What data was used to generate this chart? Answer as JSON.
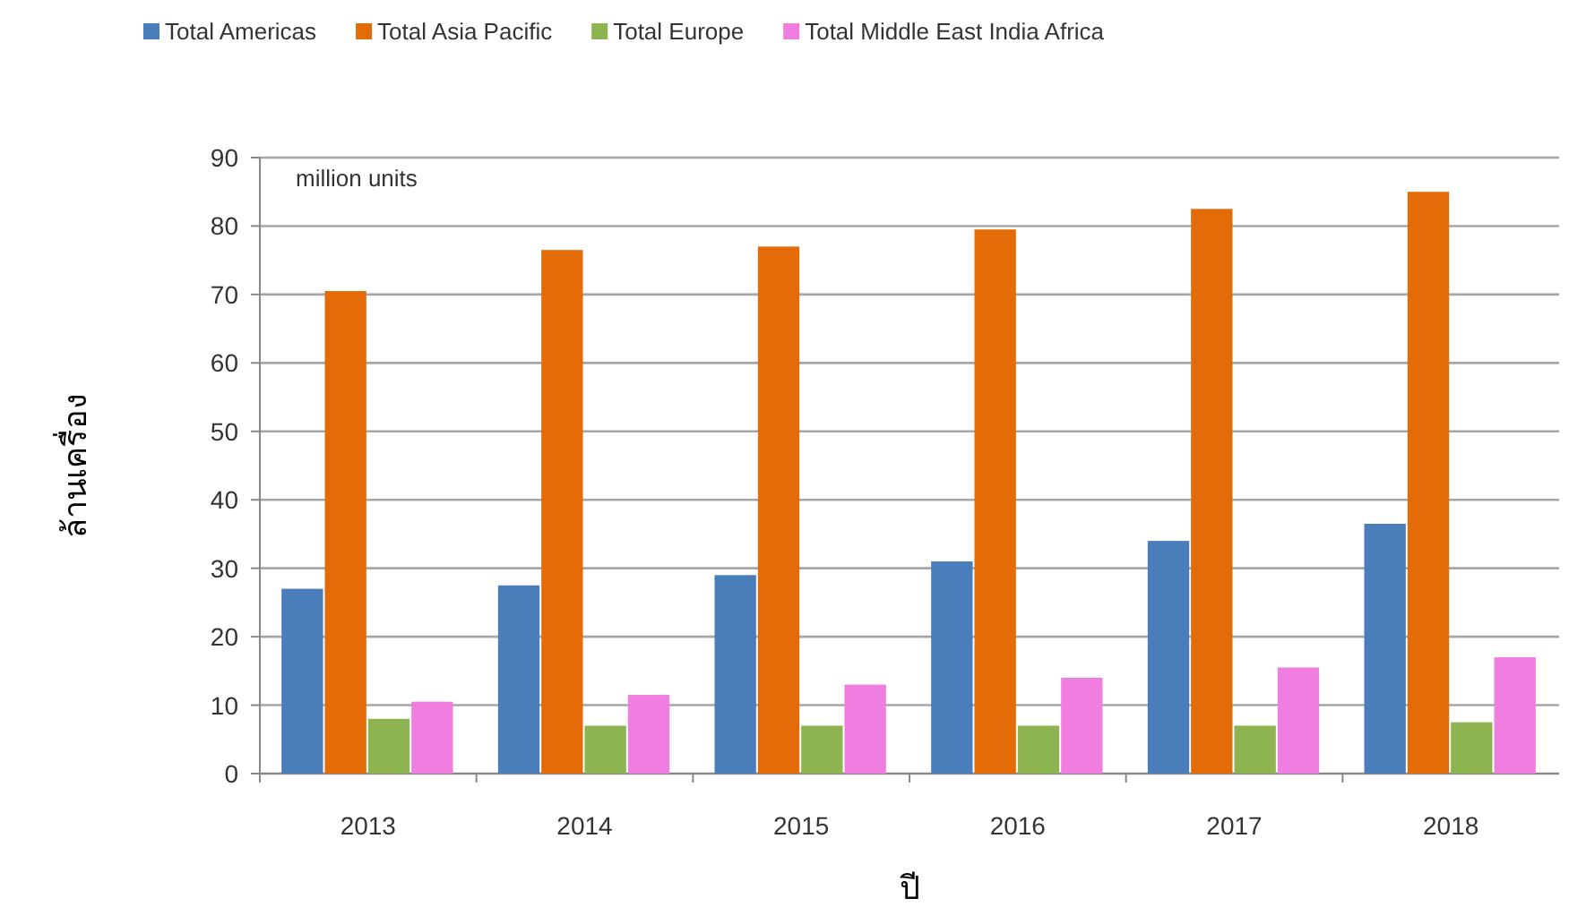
{
  "chart_data": {
    "type": "bar",
    "xlabel": "ปี",
    "ylabel": "ล้านเครื่อง",
    "annotations": [
      "million units"
    ],
    "categories": [
      "2013",
      "2014",
      "2015",
      "2016",
      "2017",
      "2018"
    ],
    "series": [
      {
        "name": "Total Americas",
        "color": "#4a7ebb",
        "values": [
          27,
          27.5,
          29,
          31,
          34,
          36.5
        ]
      },
      {
        "name": "Total Asia Pacific",
        "color": "#e36c09",
        "values": [
          70.5,
          76.5,
          77,
          79.5,
          82.5,
          85
        ]
      },
      {
        "name": "Total Europe",
        "color": "#8db451",
        "values": [
          8,
          7,
          7,
          7,
          7,
          7.5
        ]
      },
      {
        "name": "Total Middle East India Africa",
        "color": "#f07ee0",
        "values": [
          10.5,
          11.5,
          13,
          14,
          15.5,
          17
        ]
      }
    ],
    "ylim": [
      0,
      90
    ],
    "yticks": [
      0,
      10,
      20,
      30,
      40,
      50,
      60,
      70,
      80,
      90
    ],
    "grid": true,
    "legend": "top"
  }
}
